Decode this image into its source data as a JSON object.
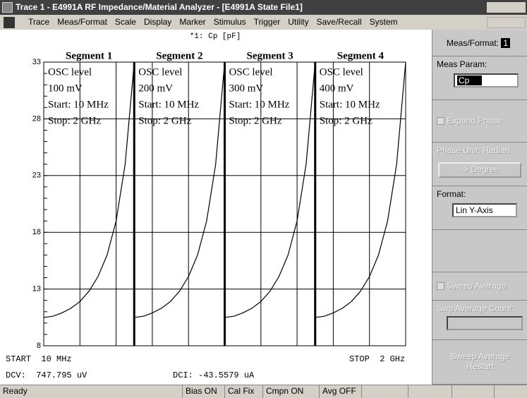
{
  "window": {
    "title": "Trace 1  -  E4991A RF Impedance/Material Analyzer - [E4991A State File1]"
  },
  "menu": [
    "Trace",
    "Meas/Format",
    "Scale",
    "Display",
    "Marker",
    "Stimulus",
    "Trigger",
    "Utility",
    "Save/Recall",
    "System"
  ],
  "chart_data": {
    "type": "line",
    "title": "*1: Cp [pF]",
    "ylim": [
      8,
      33
    ],
    "yticks": [
      8,
      13,
      18,
      23,
      28,
      33
    ],
    "grid": true,
    "segments": [
      {
        "title": "Segment 1",
        "lines": [
          "OSC level",
          "100 mV",
          "Start: 10 MHz",
          "Stop: 2 GHz"
        ]
      },
      {
        "title": "Segment 2",
        "lines": [
          "OSC level",
          "200 mV",
          "Start: 10 MHz",
          "Stop: 2 GHz"
        ]
      },
      {
        "title": "Segment 3",
        "lines": [
          "OSC level",
          "300 mV",
          "Start: 10 MHz",
          "Stop: 2 GHz"
        ]
      },
      {
        "title": "Segment 4",
        "lines": [
          "OSC level",
          "400 mV",
          "Start: 10 MHz",
          "Stop: 2 GHz"
        ]
      }
    ],
    "series": [
      {
        "color": "#000000",
        "values": [
          10.5,
          10.6,
          10.9,
          11.3,
          11.9,
          12.8,
          14.1,
          16.0,
          19.0,
          24.0,
          33
        ]
      },
      {
        "color": "#000000",
        "values": [
          10.5,
          10.6,
          10.9,
          11.3,
          11.9,
          12.8,
          14.1,
          16.0,
          19.0,
          24.0,
          33
        ]
      },
      {
        "color": "#000000",
        "values": [
          10.5,
          10.6,
          10.9,
          11.3,
          11.9,
          12.8,
          14.1,
          16.0,
          19.0,
          24.0,
          33
        ]
      },
      {
        "color": "#000000",
        "values": [
          10.5,
          10.6,
          10.9,
          11.3,
          11.9,
          12.8,
          14.1,
          16.0,
          19.0,
          24.0,
          33
        ]
      }
    ],
    "start_label": "START  10 MHz",
    "stop_label": "STOP  2 GHz",
    "dcv": "DCV:  747.795 uV",
    "dci": "DCI: -43.5579 uA"
  },
  "side_panel": {
    "meas_format": "Meas/Format:",
    "trace_number": "1",
    "meas_param": "Meas Param:",
    "meas_param_value": "Cp",
    "expand_phase": "Expand Phase",
    "phase_unit": "Phase Unit: Radian",
    "degree_button": "-> Degree",
    "format": "Format:",
    "format_value": "Lin Y-Axis",
    "sweep_average": "Sweep Average",
    "swp_average_count": "Swp Average Count:",
    "restart_button": "Sweep Average Restart"
  },
  "status_bar": [
    "Ready",
    "Bias ON",
    "Cal Fix",
    "Cmpn ON",
    "Avg OFF"
  ]
}
